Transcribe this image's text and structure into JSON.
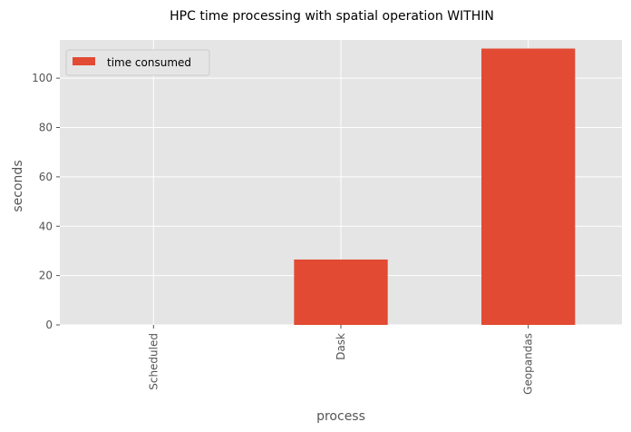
{
  "chart_data": {
    "type": "bar",
    "title": "HPC time processing with spatial operation WITHIN",
    "xlabel": "process",
    "ylabel": "seconds",
    "categories": [
      "Scheduled",
      "Dask",
      "Geopandas"
    ],
    "series": [
      {
        "name": "time consumed",
        "values": [
          0,
          26.5,
          112
        ],
        "color": "#E24A33"
      }
    ],
    "ylim": [
      0,
      115.5
    ],
    "yticks": [
      0,
      20,
      40,
      60,
      80,
      100
    ],
    "grid": true,
    "background": "#E5E5E5",
    "legend": "top-left"
  }
}
